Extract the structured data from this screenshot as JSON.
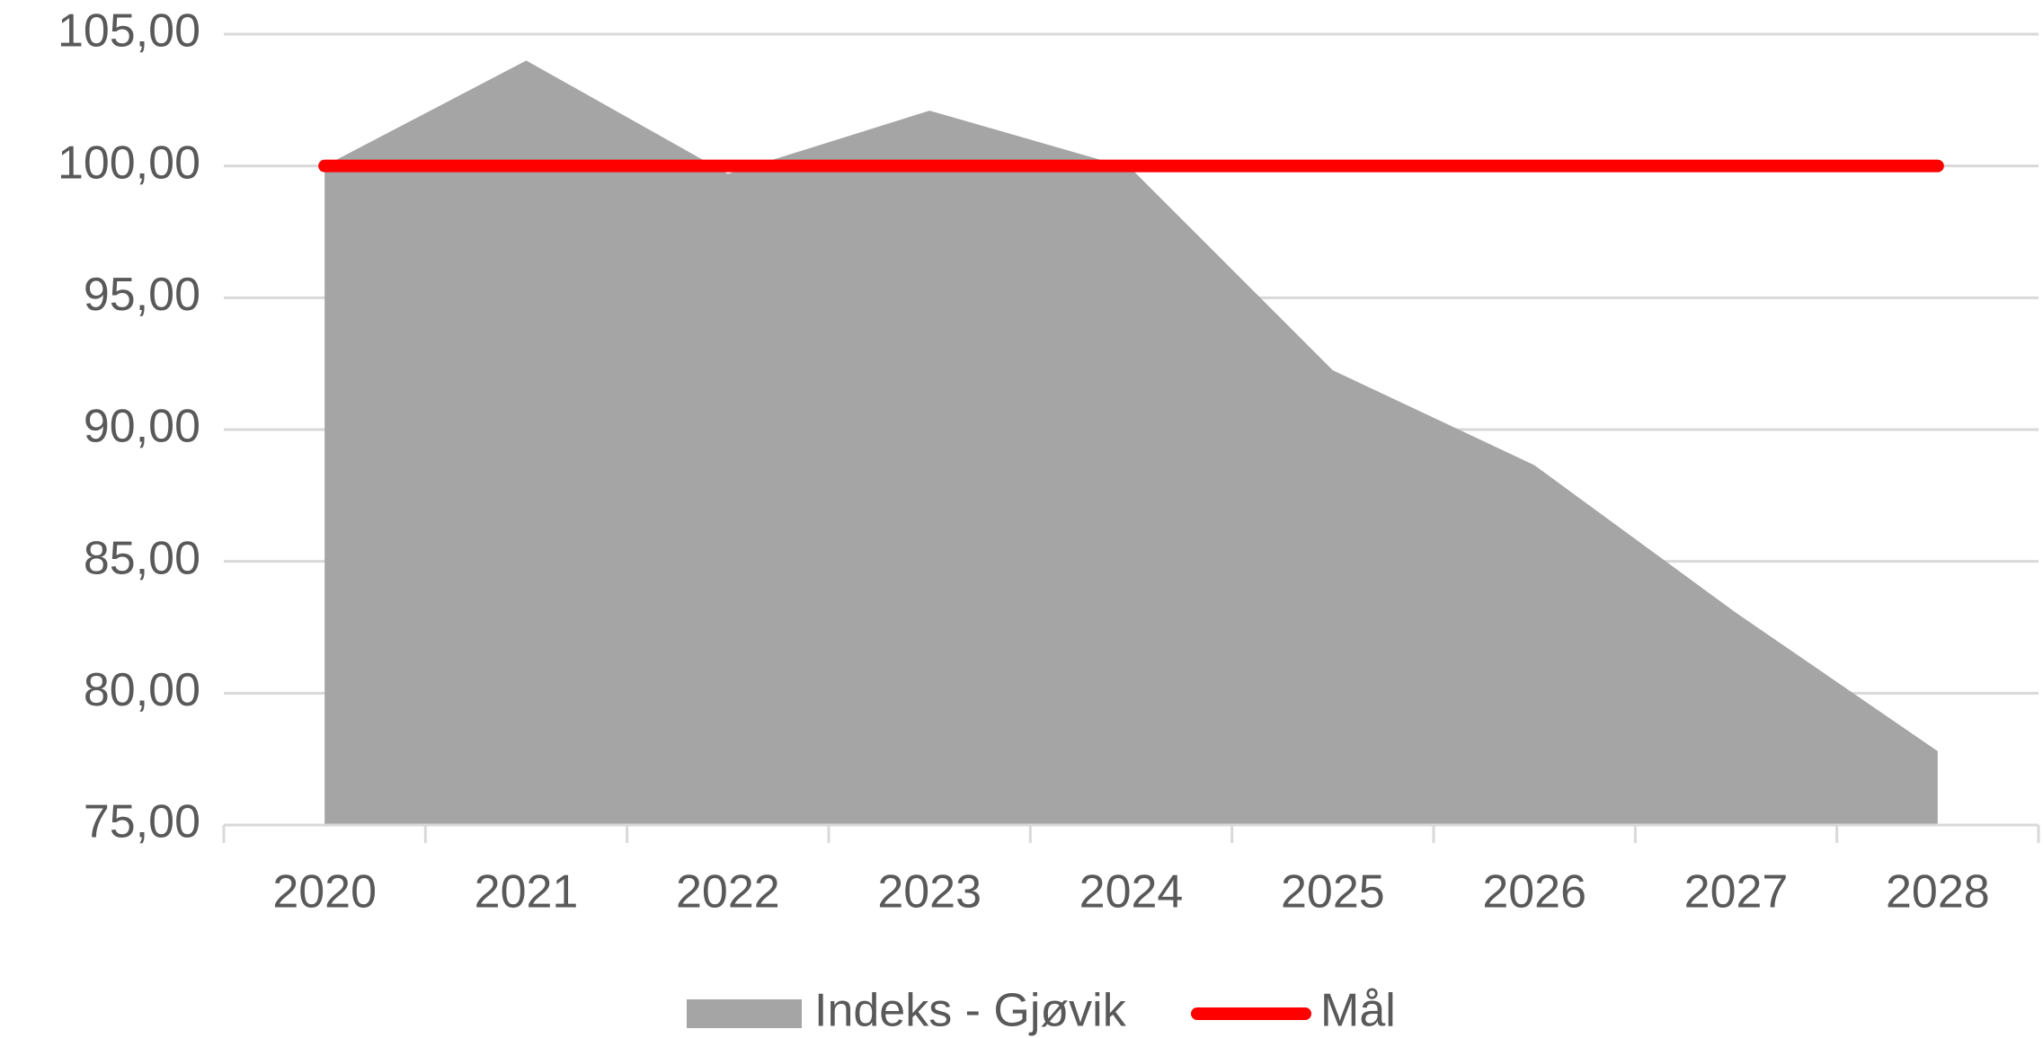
{
  "chart_data": {
    "type": "area",
    "categories": [
      "2020",
      "2021",
      "2022",
      "2023",
      "2024",
      "2025",
      "2026",
      "2027",
      "2028"
    ],
    "series": [
      {
        "name": "Indeks - Gjøvik",
        "type": "area",
        "color": "#a5a5a5",
        "values": [
          100.0,
          104.0,
          99.7,
          102.1,
          99.9,
          92.25,
          88.65,
          83.05,
          77.8
        ]
      },
      {
        "name": "Mål",
        "type": "line",
        "color": "#ff0000",
        "values": [
          100,
          100,
          100,
          100,
          100,
          100,
          100,
          100,
          100
        ]
      }
    ],
    "ylim": [
      75,
      105
    ],
    "yticks": [
      {
        "value": 75,
        "label": "75,00"
      },
      {
        "value": 80,
        "label": "80,00"
      },
      {
        "value": 85,
        "label": "85,00"
      },
      {
        "value": 90,
        "label": "90,00"
      },
      {
        "value": 95,
        "label": "95,00"
      },
      {
        "value": 100,
        "label": "100,00"
      },
      {
        "value": 105,
        "label": "105,00"
      }
    ],
    "grid": true,
    "legend": "bottom"
  }
}
